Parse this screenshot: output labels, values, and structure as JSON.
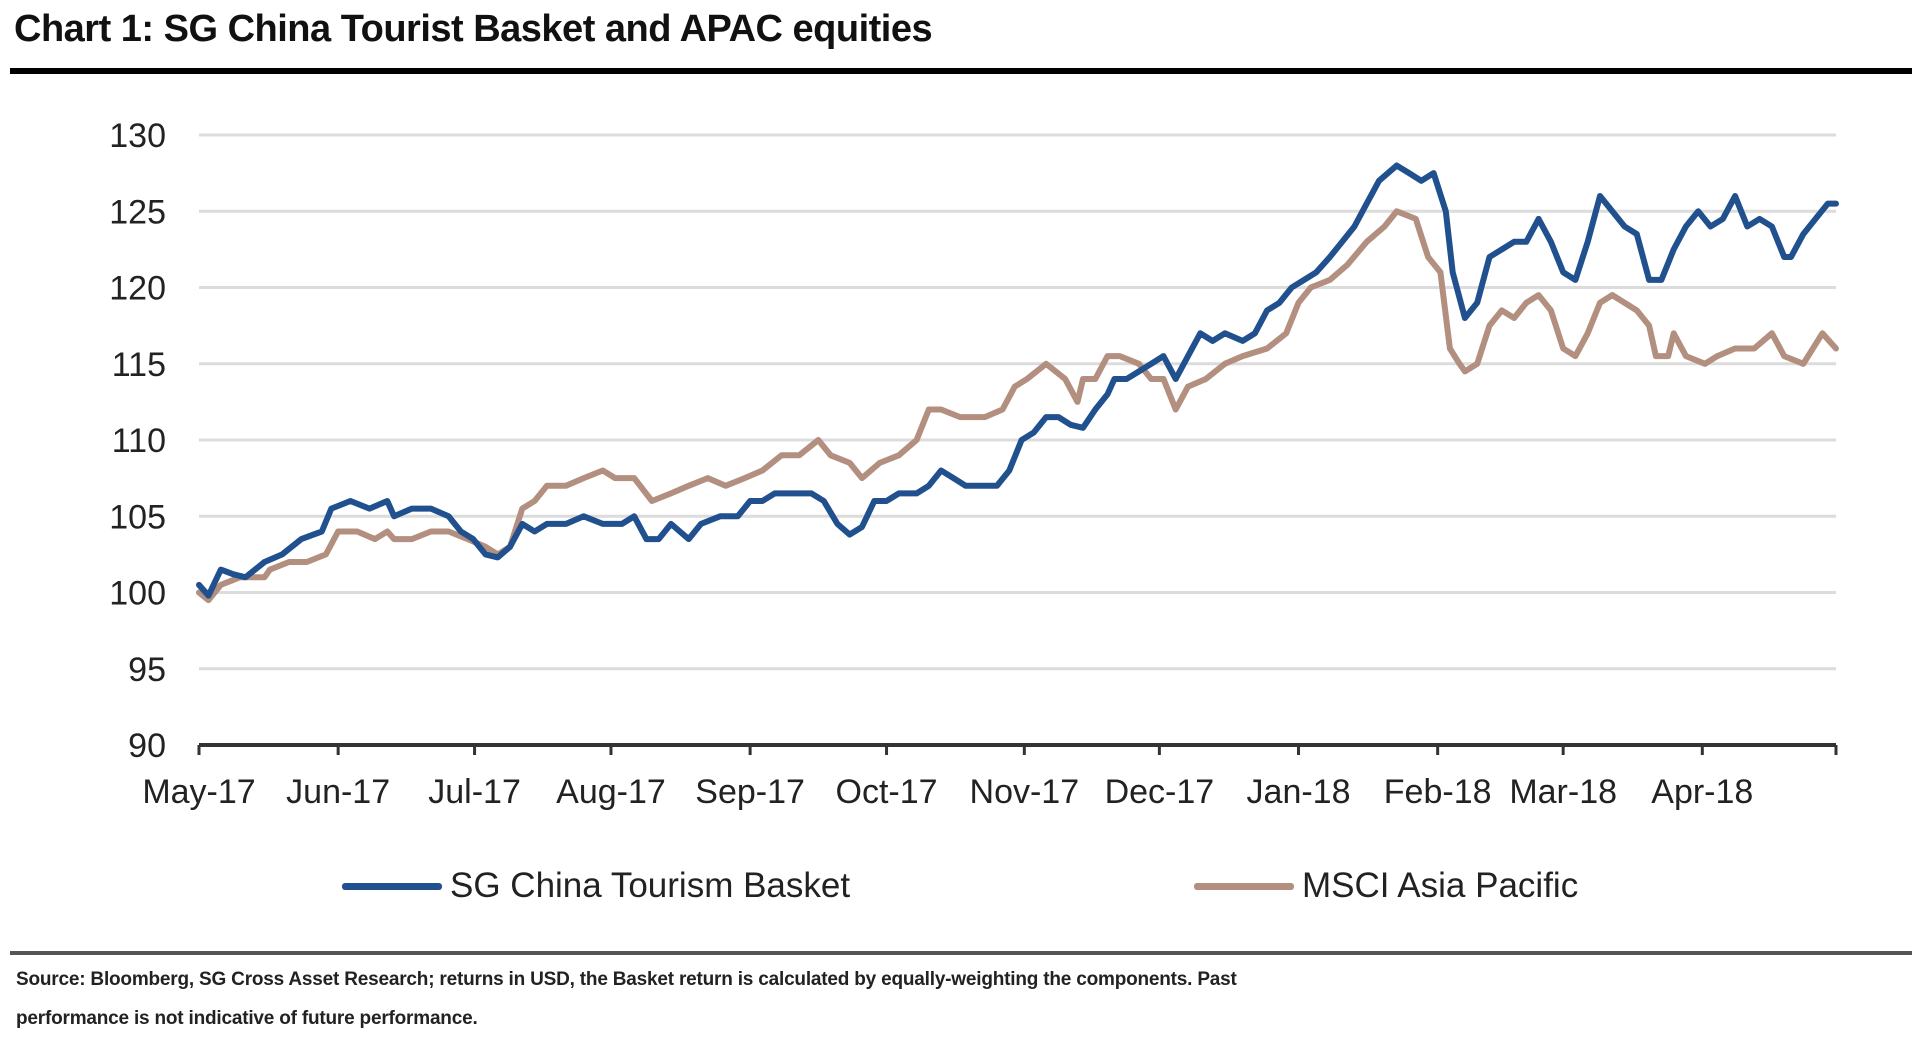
{
  "chart_data": {
    "type": "line",
    "title": "Chart 1: SG China Tourist Basket and APAC equities",
    "xlabel": "",
    "ylabel": "",
    "x_unit": "months since May-17",
    "xlim": [
      0,
      12
    ],
    "ylim": [
      90,
      130
    ],
    "yticks": [
      90,
      95,
      100,
      105,
      110,
      115,
      120,
      125,
      130
    ],
    "xtick_labels": [
      "May-17",
      "Jun-17",
      "Jul-17",
      "Aug-17",
      "Sep-17",
      "Oct-17",
      "Nov-17",
      "Dec-17",
      "Jan-18",
      "Feb-18",
      "Mar-18",
      "Apr-18"
    ],
    "xtick_positions": [
      0,
      1.02,
      2.02,
      3.02,
      4.04,
      5.04,
      6.05,
      7.04,
      8.06,
      9.08,
      10.0,
      11.02
    ],
    "grid": true,
    "legend_placement": "bottom",
    "series": [
      {
        "name": "SG China Tourism Basket",
        "color": "#21508f",
        "points": [
          [
            0,
            100.5
          ],
          [
            0.07,
            99.8
          ],
          [
            0.16,
            101.5
          ],
          [
            0.25,
            101.2
          ],
          [
            0.34,
            101
          ],
          [
            0.48,
            102
          ],
          [
            0.61,
            102.5
          ],
          [
            0.75,
            103.5
          ],
          [
            0.9,
            104
          ],
          [
            0.97,
            105.5
          ],
          [
            1.11,
            106
          ],
          [
            1.25,
            105.5
          ],
          [
            1.38,
            106
          ],
          [
            1.43,
            105
          ],
          [
            1.56,
            105.5
          ],
          [
            1.7,
            105.5
          ],
          [
            1.83,
            105
          ],
          [
            1.92,
            104
          ],
          [
            2.01,
            103.5
          ],
          [
            2.1,
            102.5
          ],
          [
            2.19,
            102.3
          ],
          [
            2.28,
            103
          ],
          [
            2.37,
            104.5
          ],
          [
            2.46,
            104
          ],
          [
            2.55,
            104.5
          ],
          [
            2.69,
            104.5
          ],
          [
            2.82,
            105
          ],
          [
            2.96,
            104.5
          ],
          [
            3.1,
            104.5
          ],
          [
            3.19,
            105
          ],
          [
            3.28,
            103.5
          ],
          [
            3.37,
            103.5
          ],
          [
            3.46,
            104.5
          ],
          [
            3.59,
            103.5
          ],
          [
            3.68,
            104.5
          ],
          [
            3.82,
            105
          ],
          [
            3.95,
            105
          ],
          [
            4.04,
            106
          ],
          [
            4.13,
            106
          ],
          [
            4.22,
            106.5
          ],
          [
            4.36,
            106.5
          ],
          [
            4.49,
            106.5
          ],
          [
            4.58,
            106
          ],
          [
            4.68,
            104.5
          ],
          [
            4.77,
            103.8
          ],
          [
            4.86,
            104.3
          ],
          [
            4.95,
            106
          ],
          [
            5.04,
            106
          ],
          [
            5.13,
            106.5
          ],
          [
            5.26,
            106.5
          ],
          [
            5.35,
            107
          ],
          [
            5.44,
            108
          ],
          [
            5.53,
            107.5
          ],
          [
            5.62,
            107
          ],
          [
            5.76,
            107
          ],
          [
            5.85,
            107
          ],
          [
            5.94,
            108
          ],
          [
            6.03,
            110
          ],
          [
            6.12,
            110.5
          ],
          [
            6.21,
            111.5
          ],
          [
            6.3,
            111.5
          ],
          [
            6.39,
            111
          ],
          [
            6.48,
            110.8
          ],
          [
            6.57,
            112
          ],
          [
            6.66,
            113
          ],
          [
            6.71,
            114
          ],
          [
            6.8,
            114
          ],
          [
            6.89,
            114.5
          ],
          [
            6.98,
            115
          ],
          [
            7.07,
            115.5
          ],
          [
            7.16,
            114
          ],
          [
            7.25,
            115.5
          ],
          [
            7.34,
            117
          ],
          [
            7.43,
            116.5
          ],
          [
            7.52,
            117
          ],
          [
            7.65,
            116.5
          ],
          [
            7.74,
            117
          ],
          [
            7.83,
            118.5
          ],
          [
            7.92,
            119
          ],
          [
            8.01,
            120
          ],
          [
            8.1,
            120.5
          ],
          [
            8.19,
            121
          ],
          [
            8.29,
            122
          ],
          [
            8.38,
            123
          ],
          [
            8.47,
            124
          ],
          [
            8.56,
            125.5
          ],
          [
            8.65,
            127
          ],
          [
            8.78,
            128
          ],
          [
            8.87,
            127.5
          ],
          [
            8.96,
            127
          ],
          [
            9.05,
            127.5
          ],
          [
            9.14,
            125
          ],
          [
            9.19,
            121
          ],
          [
            9.28,
            118
          ],
          [
            9.37,
            119
          ],
          [
            9.46,
            122
          ],
          [
            9.55,
            122.5
          ],
          [
            9.64,
            123
          ],
          [
            9.73,
            123
          ],
          [
            9.82,
            124.5
          ],
          [
            9.91,
            123
          ],
          [
            10.0,
            121
          ],
          [
            10.09,
            120.5
          ],
          [
            10.18,
            123
          ],
          [
            10.27,
            126
          ],
          [
            10.36,
            125
          ],
          [
            10.45,
            124
          ],
          [
            10.54,
            123.5
          ],
          [
            10.63,
            120.5
          ],
          [
            10.72,
            120.5
          ],
          [
            10.81,
            122.5
          ],
          [
            10.9,
            124
          ],
          [
            10.99,
            125
          ],
          [
            11.08,
            124
          ],
          [
            11.17,
            124.5
          ],
          [
            11.26,
            126
          ],
          [
            11.35,
            124
          ],
          [
            11.44,
            124.5
          ],
          [
            11.53,
            124
          ],
          [
            11.62,
            122
          ],
          [
            11.67,
            122
          ],
          [
            11.76,
            123.5
          ],
          [
            11.85,
            124.5
          ],
          [
            11.94,
            125.5
          ],
          [
            12.0,
            125.5
          ]
        ]
      },
      {
        "name": "MSCI Asia Pacific",
        "color": "#b38f80",
        "points": [
          [
            0,
            100
          ],
          [
            0.07,
            99.5
          ],
          [
            0.16,
            100.5
          ],
          [
            0.3,
            101
          ],
          [
            0.48,
            101
          ],
          [
            0.52,
            101.5
          ],
          [
            0.66,
            102
          ],
          [
            0.79,
            102
          ],
          [
            0.93,
            102.5
          ],
          [
            1.02,
            104
          ],
          [
            1.16,
            104
          ],
          [
            1.29,
            103.5
          ],
          [
            1.38,
            104
          ],
          [
            1.43,
            103.5
          ],
          [
            1.56,
            103.5
          ],
          [
            1.7,
            104
          ],
          [
            1.83,
            104
          ],
          [
            1.97,
            103.5
          ],
          [
            2.1,
            103
          ],
          [
            2.19,
            102.5
          ],
          [
            2.28,
            103
          ],
          [
            2.37,
            105.5
          ],
          [
            2.46,
            106
          ],
          [
            2.55,
            107
          ],
          [
            2.69,
            107
          ],
          [
            2.82,
            107.5
          ],
          [
            2.96,
            108
          ],
          [
            3.05,
            107.5
          ],
          [
            3.19,
            107.5
          ],
          [
            3.32,
            106
          ],
          [
            3.46,
            106.5
          ],
          [
            3.59,
            107
          ],
          [
            3.73,
            107.5
          ],
          [
            3.86,
            107
          ],
          [
            4.0,
            107.5
          ],
          [
            4.13,
            108
          ],
          [
            4.27,
            109
          ],
          [
            4.4,
            109
          ],
          [
            4.54,
            110
          ],
          [
            4.63,
            109
          ],
          [
            4.77,
            108.5
          ],
          [
            4.86,
            107.5
          ],
          [
            4.99,
            108.5
          ],
          [
            5.13,
            109
          ],
          [
            5.26,
            110
          ],
          [
            5.35,
            112
          ],
          [
            5.44,
            112
          ],
          [
            5.58,
            111.5
          ],
          [
            5.76,
            111.5
          ],
          [
            5.89,
            112
          ],
          [
            5.98,
            113.5
          ],
          [
            6.07,
            114
          ],
          [
            6.21,
            115
          ],
          [
            6.35,
            114
          ],
          [
            6.44,
            112.5
          ],
          [
            6.48,
            114
          ],
          [
            6.57,
            114
          ],
          [
            6.66,
            115.5
          ],
          [
            6.75,
            115.5
          ],
          [
            6.89,
            115
          ],
          [
            6.98,
            114
          ],
          [
            7.07,
            114
          ],
          [
            7.16,
            112
          ],
          [
            7.25,
            113.5
          ],
          [
            7.38,
            114
          ],
          [
            7.52,
            115
          ],
          [
            7.65,
            115.5
          ],
          [
            7.83,
            116
          ],
          [
            7.97,
            117
          ],
          [
            8.06,
            119
          ],
          [
            8.15,
            120
          ],
          [
            8.29,
            120.5
          ],
          [
            8.42,
            121.5
          ],
          [
            8.56,
            123
          ],
          [
            8.69,
            124
          ],
          [
            8.78,
            125
          ],
          [
            8.92,
            124.5
          ],
          [
            9.01,
            122
          ],
          [
            9.1,
            121
          ],
          [
            9.17,
            116
          ],
          [
            9.24,
            115
          ],
          [
            9.28,
            114.5
          ],
          [
            9.37,
            115
          ],
          [
            9.46,
            117.5
          ],
          [
            9.55,
            118.5
          ],
          [
            9.64,
            118
          ],
          [
            9.73,
            119
          ],
          [
            9.82,
            119.5
          ],
          [
            9.91,
            118.5
          ],
          [
            10.0,
            116
          ],
          [
            10.09,
            115.5
          ],
          [
            10.18,
            117
          ],
          [
            10.27,
            119
          ],
          [
            10.36,
            119.5
          ],
          [
            10.45,
            119
          ],
          [
            10.54,
            118.5
          ],
          [
            10.63,
            117.5
          ],
          [
            10.68,
            115.5
          ],
          [
            10.77,
            115.5
          ],
          [
            10.81,
            117
          ],
          [
            10.9,
            115.5
          ],
          [
            11.04,
            115
          ],
          [
            11.13,
            115.5
          ],
          [
            11.26,
            116
          ],
          [
            11.4,
            116
          ],
          [
            11.53,
            117
          ],
          [
            11.62,
            115.5
          ],
          [
            11.76,
            115
          ],
          [
            11.9,
            117
          ],
          [
            12.0,
            116
          ]
        ]
      }
    ]
  },
  "source_note": {
    "line1": "Source: Bloomberg, SG Cross Asset Research; returns in USD, the Basket return is calculated by equally-weighting the components. Past",
    "line2": "performance is not indicative of future performance."
  }
}
